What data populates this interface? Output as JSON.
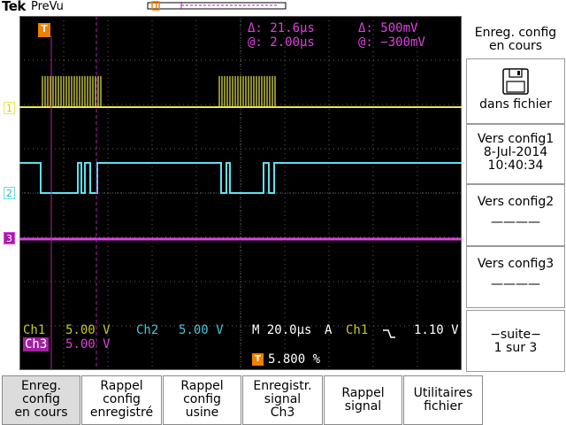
{
  "header": {
    "brand": "Tek",
    "mode": "PreVu"
  },
  "colors": {
    "ch1": "#e8e84a",
    "ch2": "#5fe0f0",
    "ch3": "#e040e0",
    "cursor": "#b020b0",
    "trigger": "#f08000",
    "grid": "#606060"
  },
  "cursors": {
    "delta_time": "Δ:   21.6µs",
    "at_time": "@:   2.00µs",
    "delta_volt": "Δ:    500mV",
    "at_volt": "@:  −300mV"
  },
  "channels": {
    "ch1_label": "Ch1",
    "ch1_scale": "5.00 V",
    "ch2_label": "Ch2",
    "ch2_scale": "5.00 V",
    "ch3_label": "Ch3",
    "ch3_scale": "5.00 V",
    "marker1": "1",
    "marker2": "2",
    "marker3": "3"
  },
  "timebase": {
    "horizontal": "M 20.0µs",
    "trigger_mode": "A",
    "trigger_source": "Ch1",
    "trigger_slope_icon": "falling-edge-icon",
    "trigger_level": "1.10 V",
    "trigger_position": "5.800 %",
    "trigger_marker": "T"
  },
  "side_menu": {
    "title": "Enreg. config\nen cours",
    "save_icon": "floppy-disk-icon",
    "save_to_file": "dans fichier",
    "config1_label": "Vers config1",
    "config1_date": "8-Jul-2014",
    "config1_time": "10:40:34",
    "config2_label": "Vers config2",
    "config2_value": "————",
    "config3_label": "Vers config3",
    "config3_value": "————",
    "more_label": "−suite−",
    "more_page": "1 sur 3"
  },
  "bottom_menu": [
    {
      "label": "Enreg.\nconfig\nen cours",
      "selected": true
    },
    {
      "label": "Rappel\nconfig\nenregistré",
      "selected": false
    },
    {
      "label": "Rappel\nconfig\nusine",
      "selected": false
    },
    {
      "label": "Enregistr.\nsignal\nCh3",
      "selected": false
    },
    {
      "label": "Rappel\nsignal",
      "selected": false
    },
    {
      "label": "Utilitaires\nfichier",
      "selected": false
    }
  ]
}
